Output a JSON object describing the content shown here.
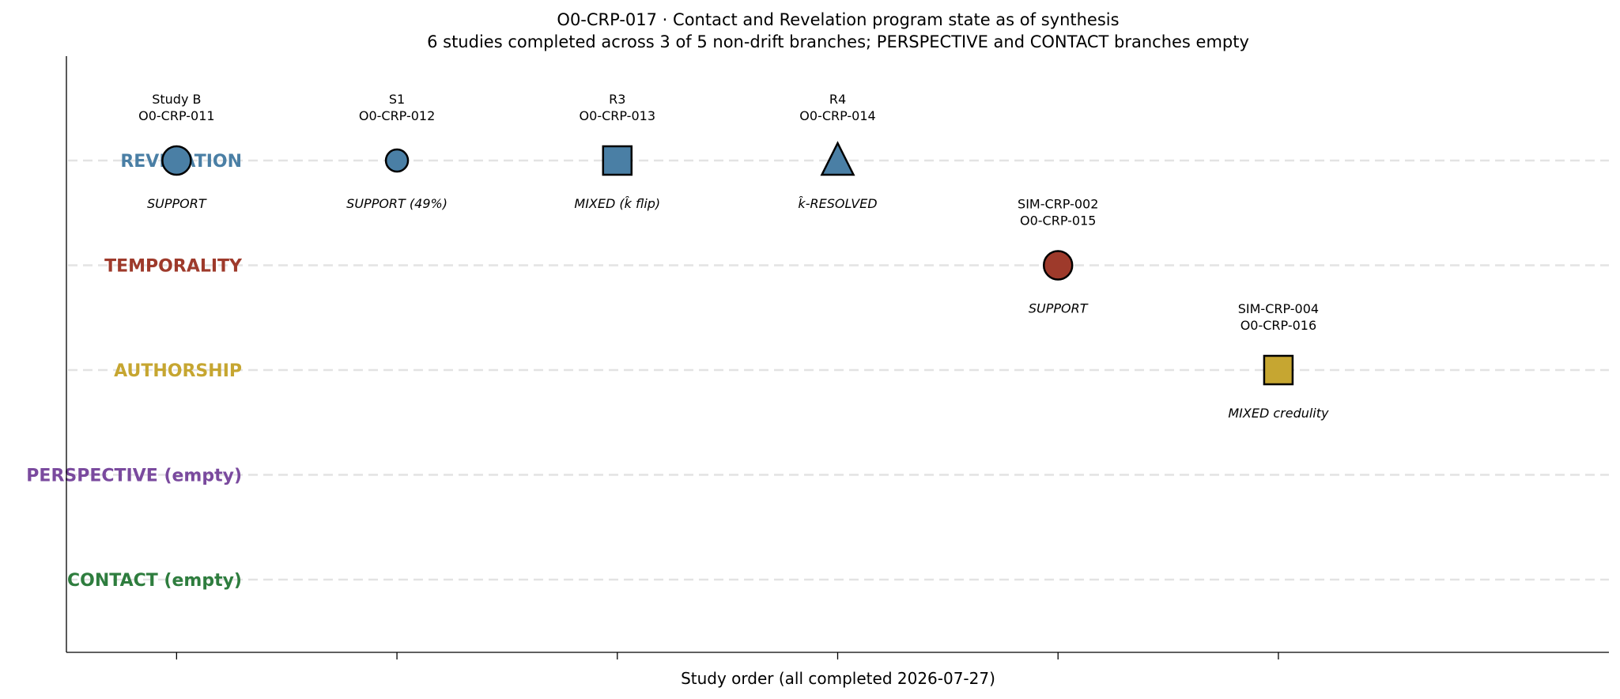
{
  "chart_data": {
    "type": "scatter",
    "title": "O0-CRP-017 · Contact and Revelation program state as of synthesis",
    "subtitle": "6 studies completed across 3 of 5 non-drift branches; PERSPECTIVE and CONTACT branches empty",
    "xlabel": "Study order (all completed 2026-07-27)",
    "ylabel": "",
    "xlim": [
      0.5,
      7.5
    ],
    "grid": "horizontal dashed lines at each branch",
    "branches": [
      {
        "name": "REVELATION",
        "label": "REVELATION",
        "color": "#4a7fa5"
      },
      {
        "name": "TEMPORALITY",
        "label": "TEMPORALITY",
        "color": "#9e3a2b"
      },
      {
        "name": "AUTHORSHIP",
        "label": "AUTHORSHIP",
        "color": "#c6a631"
      },
      {
        "name": "PERSPECTIVE",
        "label": "PERSPECTIVE  (empty)",
        "color": "#7a4a9e"
      },
      {
        "name": "CONTACT",
        "label": "CONTACT  (empty)",
        "color": "#2e7d3e"
      }
    ],
    "points": [
      {
        "x": 1,
        "branch": "REVELATION",
        "marker": "circle",
        "size": "large",
        "name": "Study B",
        "id": "O0-CRP-011",
        "outcome": "SUPPORT"
      },
      {
        "x": 2,
        "branch": "REVELATION",
        "marker": "circle",
        "size": "small",
        "name": "S1",
        "id": "O0-CRP-012",
        "outcome": "SUPPORT (49%)"
      },
      {
        "x": 3,
        "branch": "REVELATION",
        "marker": "square",
        "size": "large",
        "name": "R3",
        "id": "O0-CRP-013",
        "outcome": "MIXED (k̂ flip)"
      },
      {
        "x": 4,
        "branch": "REVELATION",
        "marker": "triangle",
        "size": "large",
        "name": "R4",
        "id": "O0-CRP-014",
        "outcome": "k̂-RESOLVED"
      },
      {
        "x": 5,
        "branch": "TEMPORALITY",
        "marker": "circle",
        "size": "large",
        "name": "SIM-CRP-002",
        "id": "O0-CRP-015",
        "outcome": "SUPPORT"
      },
      {
        "x": 6,
        "branch": "AUTHORSHIP",
        "marker": "square",
        "size": "large",
        "name": "SIM-CRP-004",
        "id": "O0-CRP-016",
        "outcome": "MIXED credulity"
      }
    ]
  }
}
